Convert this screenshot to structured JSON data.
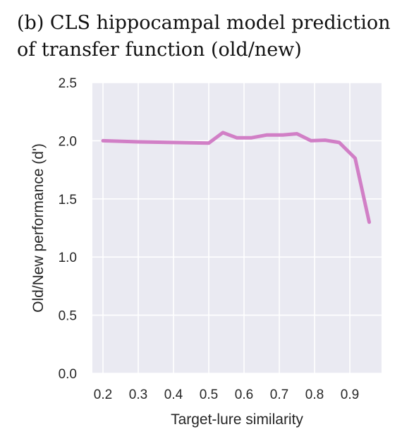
{
  "title": {
    "line1": "(b) CLS hippocampal model prediction",
    "line2": "of transfer function (old/new)"
  },
  "chart_data": {
    "type": "line",
    "xlabel": "Target-lure similarity",
    "ylabel": "Old/New performance (d')",
    "xlim": [
      0.17,
      0.99
    ],
    "ylim": [
      0.0,
      2.5
    ],
    "xticks": [
      "0.2",
      "0.3",
      "0.4",
      "0.5",
      "0.6",
      "0.7",
      "0.8",
      "0.9"
    ],
    "yticks": [
      "0.0",
      "0.5",
      "1.0",
      "1.5",
      "2.0",
      "2.5"
    ],
    "grid": true,
    "background": "#eaeaf2",
    "series": [
      {
        "color": "#d17fc6",
        "x": [
          0.2,
          0.3,
          0.4,
          0.5,
          0.54,
          0.58,
          0.62,
          0.665,
          0.71,
          0.75,
          0.79,
          0.83,
          0.87,
          0.915,
          0.955
        ],
        "y": [
          2.0,
          1.99,
          1.985,
          1.98,
          2.07,
          2.025,
          2.025,
          2.05,
          2.05,
          2.06,
          2.0,
          2.005,
          1.985,
          1.85,
          1.3
        ]
      }
    ]
  }
}
